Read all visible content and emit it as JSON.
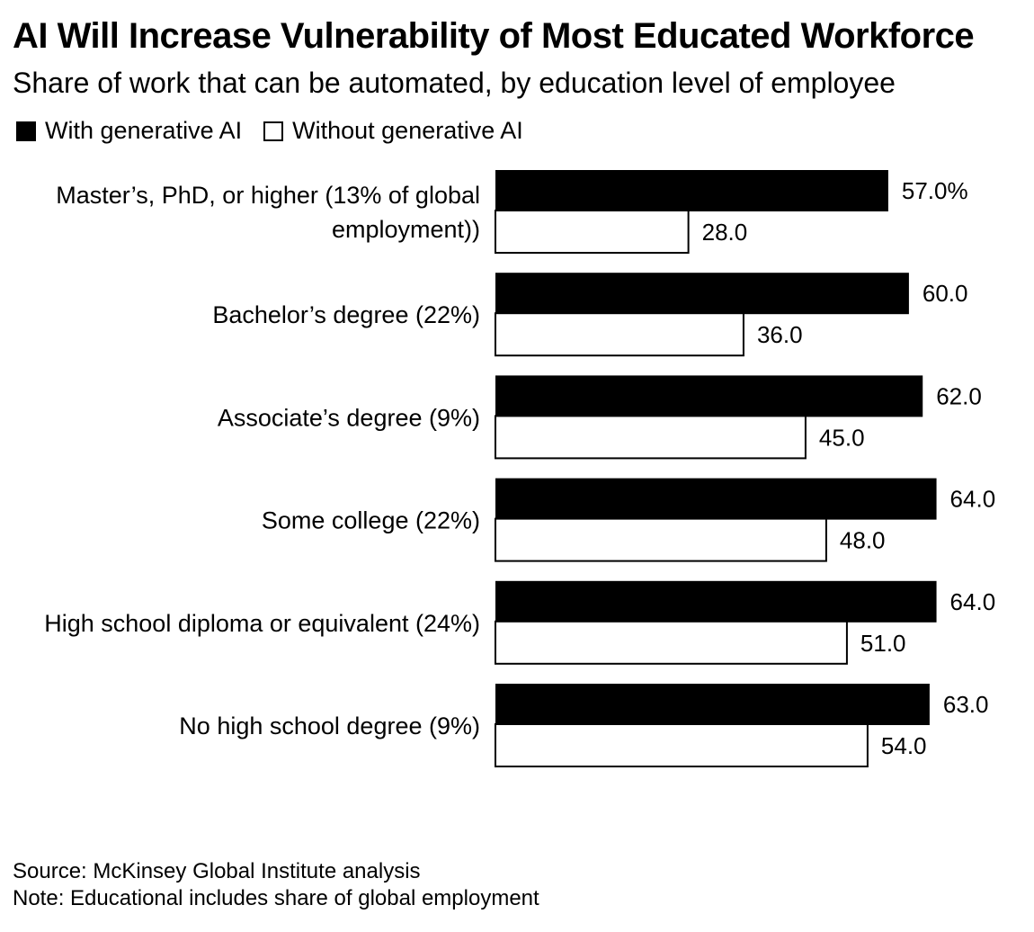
{
  "chart_data": {
    "type": "bar",
    "orientation": "horizontal",
    "title": "AI Will Increase Vulnerability of Most Educated Workforce",
    "subtitle": "Share of work that can be automated, by education level of employee",
    "categories": [
      [
        "Master’s, PhD, or higher (13% of global",
        "employment))"
      ],
      [
        "Bachelor’s degree (22%)"
      ],
      [
        "Associate’s degree (9%)"
      ],
      [
        "Some college (22%)"
      ],
      [
        "High school diploma or equivalent (24%)"
      ],
      [
        "No high school degree (9%)"
      ]
    ],
    "series": [
      {
        "name": "With generative AI",
        "color": "#000000",
        "values": [
          57.0,
          60.0,
          62.0,
          64.0,
          64.0,
          63.0
        ],
        "labels": [
          "57.0%",
          "60.0",
          "62.0",
          "64.0",
          "64.0",
          "63.0"
        ]
      },
      {
        "name": "Without generative AI",
        "color": "#ffffff",
        "values": [
          28.0,
          36.0,
          45.0,
          48.0,
          51.0,
          54.0
        ],
        "labels": [
          "28.0",
          "36.0",
          "45.0",
          "48.0",
          "51.0",
          "54.0"
        ]
      }
    ],
    "legend_position": "top-left",
    "grid": false,
    "xlim": [
      0,
      70
    ]
  },
  "footer": {
    "source": "Source: McKinsey Global Institute analysis",
    "note": "Note: Educational includes share of global employment"
  }
}
